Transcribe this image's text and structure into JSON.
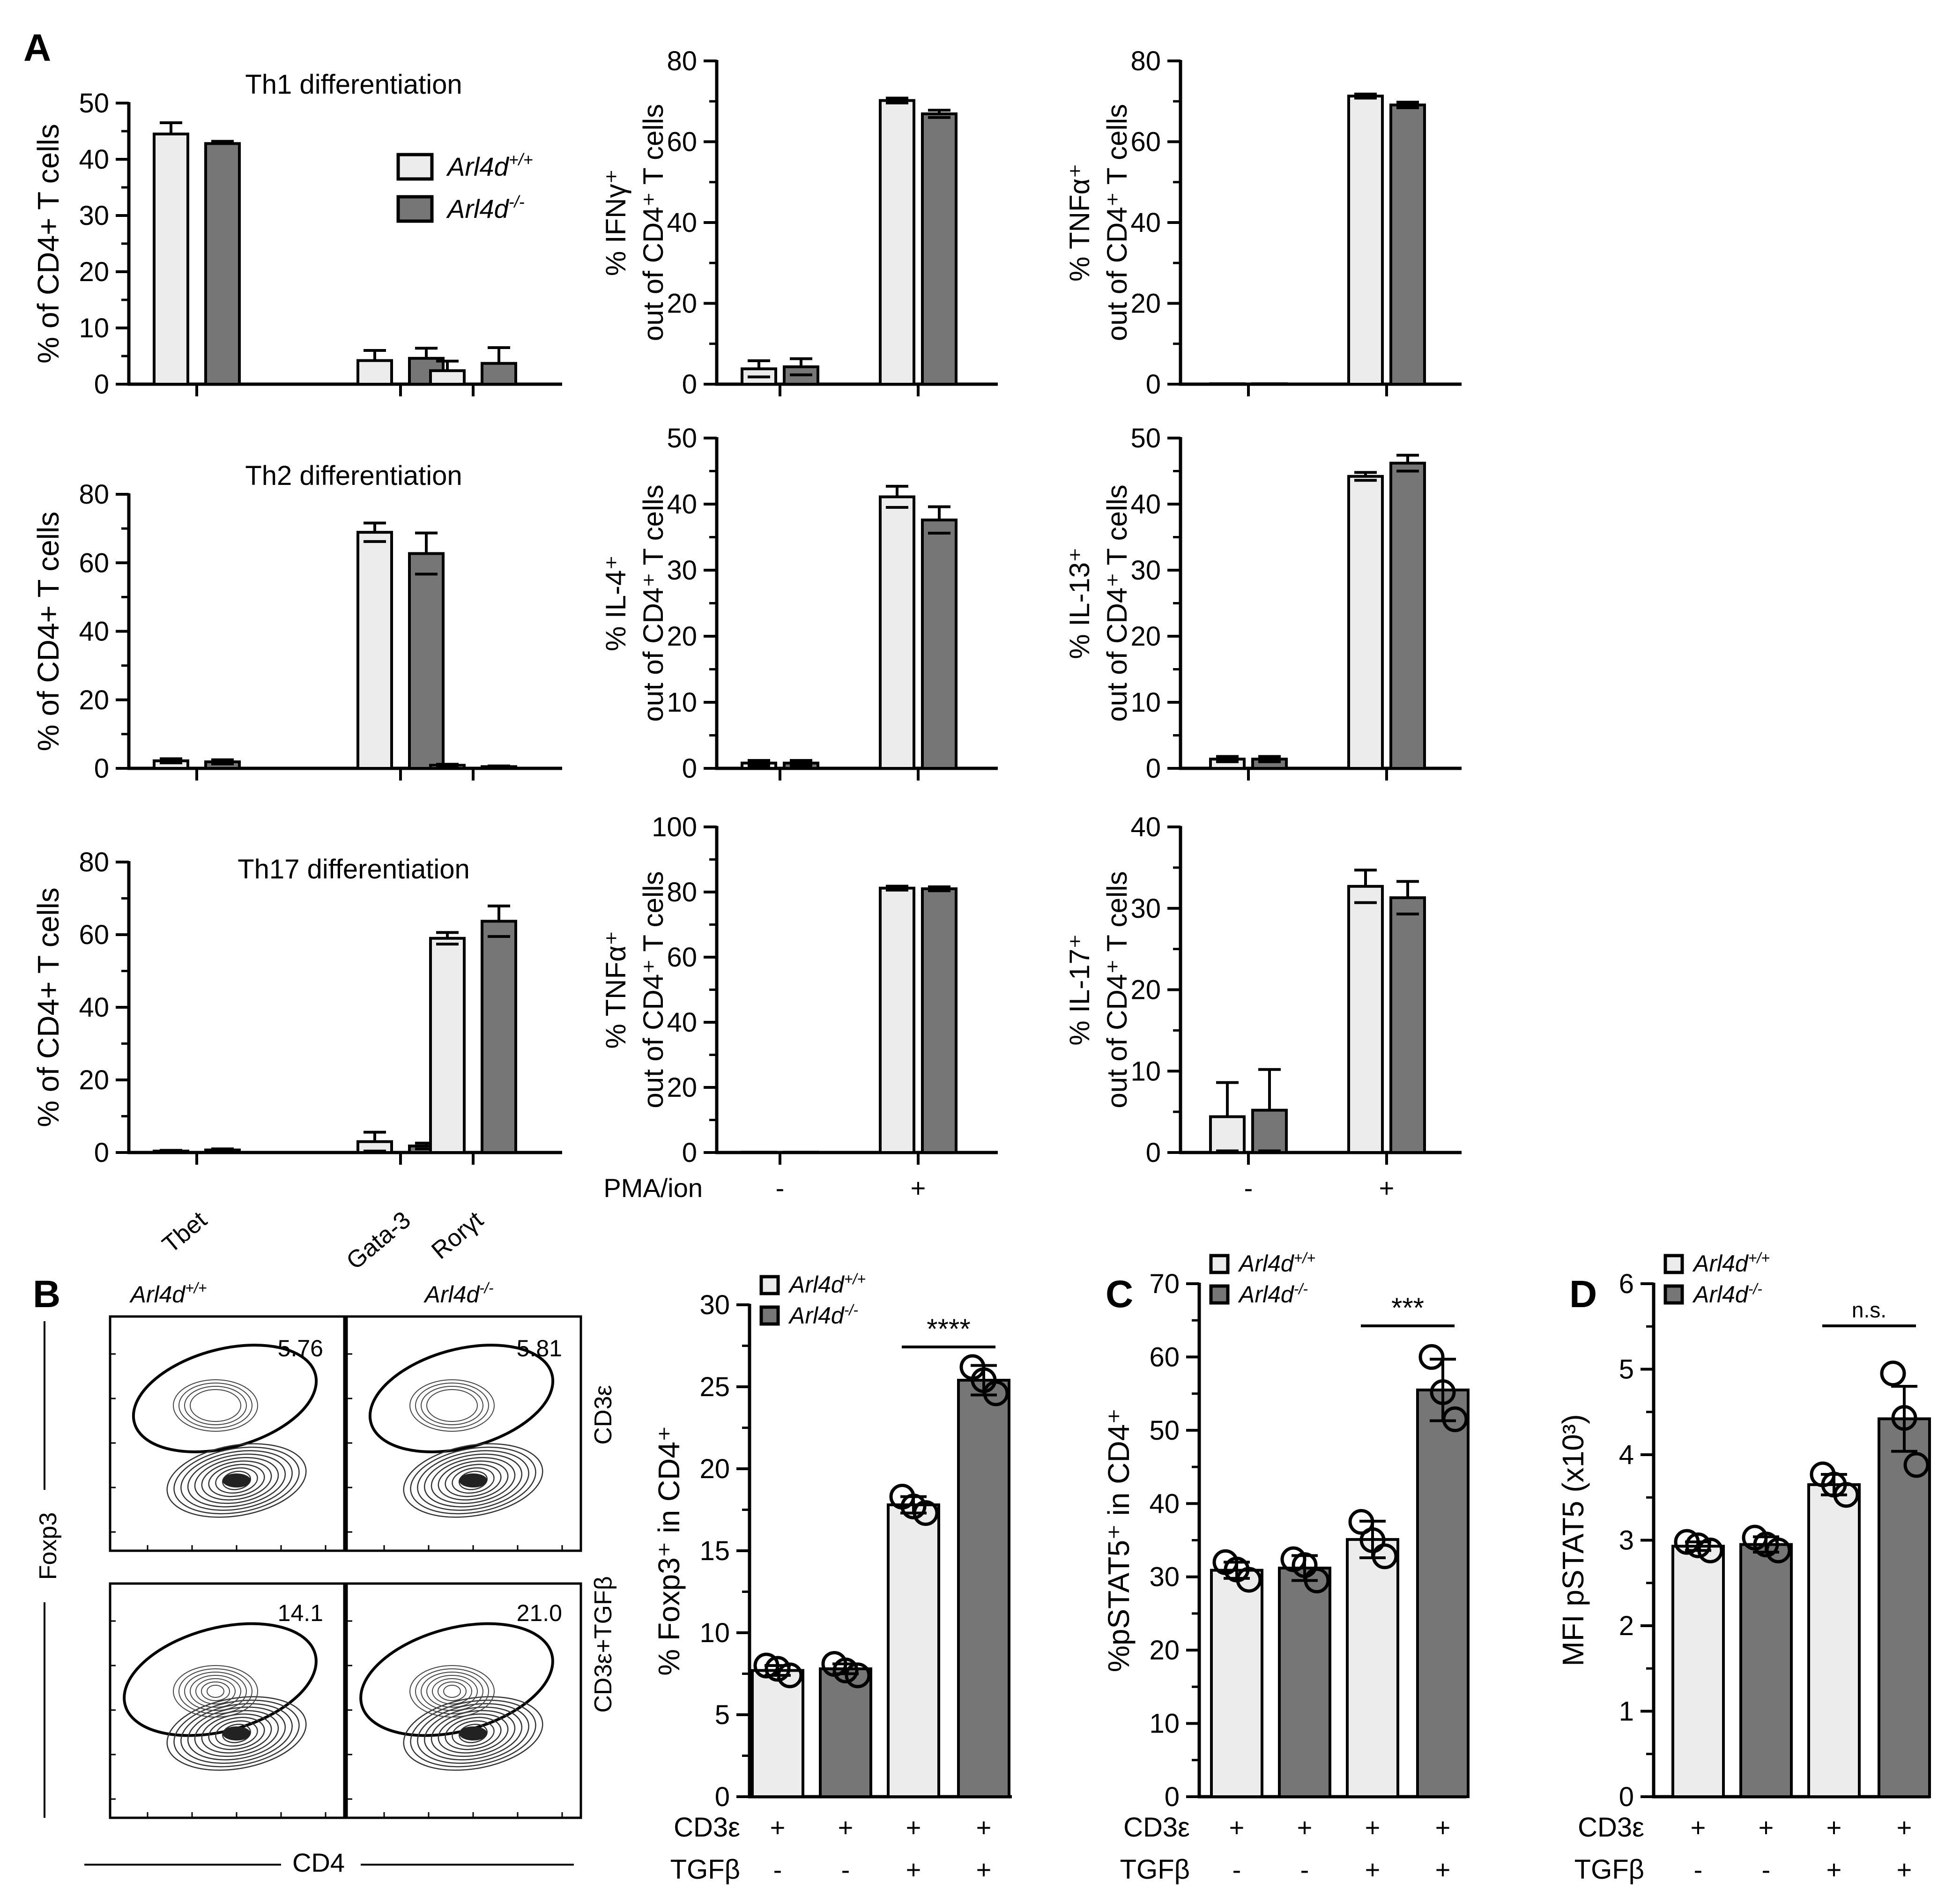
{
  "colors": {
    "wt": "#ececec",
    "ko": "#767676",
    "stroke": "#000000"
  },
  "legend_a": {
    "wt_gene": "Arl4d",
    "wt_sup": "+/+",
    "ko_gene": "Arl4d",
    "ko_sup": "-/-"
  },
  "panel_labels": {
    "A": "A",
    "B": "B",
    "C": "C",
    "D": "D"
  },
  "flow": {
    "col_wt": "Arl4d",
    "col_wt_sup": "+/+",
    "col_ko": "Arl4d",
    "col_ko_sup": "-/-",
    "row_top": "CD3ε",
    "row_bottom": "CD3ε+TGFβ",
    "y_axis": "Foxp3",
    "x_axis": "CD4",
    "values": [
      "5.76",
      "5.81",
      "14.1",
      "21.0"
    ]
  },
  "chart_data": [
    {
      "id": "th1",
      "type": "bar",
      "title": "Th1 differentiation",
      "ylabel": "% of CD4+ T cells",
      "ylim": [
        0,
        50
      ],
      "ticks": [
        0,
        10,
        20,
        30,
        40,
        50
      ],
      "categories": [
        "Tbet",
        "Gata-3",
        "Rorγt"
      ],
      "series": [
        {
          "name": "Arl4d+/+",
          "values": [
            44.5,
            4.2,
            2.4
          ],
          "errors": [
            2.0,
            1.8,
            1.7
          ]
        },
        {
          "name": "Arl4d-/-",
          "values": [
            42.8,
            4.6,
            3.7
          ],
          "errors": [
            0.4,
            1.8,
            2.8
          ]
        }
      ]
    },
    {
      "id": "th1_ifng",
      "type": "bar",
      "ylabel": "% IFNγ⁺ out of CD4⁺ T cells",
      "ylim": [
        0,
        80
      ],
      "ticks": [
        0,
        20,
        40,
        60,
        80
      ],
      "categories": [
        "-",
        "+"
      ],
      "series": [
        {
          "name": "Arl4d+/+",
          "values": [
            3.8,
            70.2
          ],
          "errors": [
            2.0,
            0.6
          ]
        },
        {
          "name": "Arl4d-/-",
          "values": [
            4.3,
            66.9
          ],
          "errors": [
            2.0,
            0.9
          ]
        }
      ]
    },
    {
      "id": "th1_tnfa",
      "type": "bar",
      "ylabel": "% TNFα⁺ out of CD4⁺ T cells",
      "ylim": [
        0,
        80
      ],
      "ticks": [
        0,
        20,
        40,
        60,
        80
      ],
      "categories": [
        "-",
        "+"
      ],
      "series": [
        {
          "name": "Arl4d+/+",
          "values": [
            0.1,
            71.3
          ],
          "errors": [
            0,
            0.5
          ]
        },
        {
          "name": "Arl4d-/-",
          "values": [
            0.1,
            69.1
          ],
          "errors": [
            0,
            0.7
          ]
        }
      ]
    },
    {
      "id": "th2",
      "type": "bar",
      "title": "Th2 differentiation",
      "ylabel": "% of CD4+ T cells",
      "ylim": [
        0,
        80
      ],
      "ticks": [
        0,
        20,
        40,
        60,
        80
      ],
      "categories": [
        "Tbet",
        "Gata-3",
        "Rorγt"
      ],
      "series": [
        {
          "name": "Arl4d+/+",
          "values": [
            2.2,
            68.9,
            0.9
          ],
          "errors": [
            0.6,
            2.7,
            0.3
          ]
        },
        {
          "name": "Arl4d-/-",
          "values": [
            1.9,
            62.7,
            0.5
          ],
          "errors": [
            0.6,
            6.0,
            0.2
          ]
        }
      ]
    },
    {
      "id": "th2_il4",
      "type": "bar",
      "ylabel": "% IL-4⁺ out of CD4⁺ T cells",
      "ylim": [
        0,
        50
      ],
      "ticks": [
        0,
        10,
        20,
        30,
        40,
        50
      ],
      "categories": [
        "-",
        "+"
      ],
      "series": [
        {
          "name": "Arl4d+/+",
          "values": [
            0.8,
            41.1
          ],
          "errors": [
            0.4,
            1.6
          ]
        },
        {
          "name": "Arl4d-/-",
          "values": [
            0.8,
            37.6
          ],
          "errors": [
            0.4,
            2.0
          ]
        }
      ]
    },
    {
      "id": "th2_il13",
      "type": "bar",
      "ylabel": "% IL-13⁺ out of CD4⁺ T cells",
      "ylim": [
        0,
        50
      ],
      "ticks": [
        0,
        10,
        20,
        30,
        40,
        50
      ],
      "categories": [
        "-",
        "+"
      ],
      "series": [
        {
          "name": "Arl4d+/+",
          "values": [
            1.4,
            44.2
          ],
          "errors": [
            0.4,
            0.6
          ]
        },
        {
          "name": "Arl4d-/-",
          "values": [
            1.4,
            46.2
          ],
          "errors": [
            0.4,
            1.2
          ]
        }
      ]
    },
    {
      "id": "th17",
      "type": "bar",
      "title": "Th17 differentiation",
      "ylabel": "% of CD4+ T cells",
      "ylim": [
        0,
        80
      ],
      "ticks": [
        0,
        20,
        40,
        60,
        80
      ],
      "categories": [
        "Tbet",
        "Gata-3",
        "Rorγt"
      ],
      "series": [
        {
          "name": "Arl4d+/+",
          "values": [
            0.4,
            3.0,
            59.0
          ],
          "errors": [
            0.2,
            2.6,
            1.6
          ]
        },
        {
          "name": "Arl4d-/-",
          "values": [
            0.7,
            1.8,
            63.7
          ],
          "errors": [
            0.3,
            0.8,
            4.2
          ]
        }
      ]
    },
    {
      "id": "th17_tnfa",
      "type": "bar",
      "ylabel": "% TNFα⁺ out of CD4⁺ T cells",
      "ylim": [
        0,
        100
      ],
      "ticks": [
        0,
        20,
        40,
        60,
        80,
        100
      ],
      "categories": [
        "-",
        "+"
      ],
      "row_label": "PMA/ion",
      "series": [
        {
          "name": "Arl4d+/+",
          "values": [
            0.1,
            81.2
          ],
          "errors": [
            0,
            0.6
          ]
        },
        {
          "name": "Arl4d-/-",
          "values": [
            0.1,
            81.0
          ],
          "errors": [
            0,
            0.6
          ]
        }
      ]
    },
    {
      "id": "th17_il17",
      "type": "bar",
      "ylabel": "% IL-17⁺ out of CD4⁺ T cells",
      "ylim": [
        0,
        40
      ],
      "ticks": [
        0,
        10,
        20,
        30,
        40
      ],
      "categories": [
        "-",
        "+"
      ],
      "series": [
        {
          "name": "Arl4d+/+",
          "values": [
            4.4,
            32.7
          ],
          "errors": [
            4.2,
            2.0
          ]
        },
        {
          "name": "Arl4d-/-",
          "values": [
            5.2,
            31.3
          ],
          "errors": [
            5.0,
            2.0
          ]
        }
      ]
    },
    {
      "id": "foxp3",
      "type": "bar",
      "ylabel": "% Foxp3⁺ in CD4⁺",
      "ylim": [
        0,
        30
      ],
      "ticks": [
        0,
        5,
        10,
        15,
        20,
        25,
        30
      ],
      "row_labels": [
        "CD3ε",
        "TGFβ"
      ],
      "cd3e": [
        "+",
        "+",
        "+",
        "+"
      ],
      "tgfb": [
        "-",
        "-",
        "+",
        "+"
      ],
      "bars": [
        {
          "name": "Arl4d+/+",
          "value": 7.7,
          "error": 0.3,
          "points": [
            8.0,
            7.4,
            7.8
          ]
        },
        {
          "name": "Arl4d-/-",
          "value": 7.8,
          "error": 0.3,
          "points": [
            8.1,
            7.4,
            7.7
          ]
        },
        {
          "name": "Arl4d+/+",
          "value": 17.8,
          "error": 0.5,
          "points": [
            18.3,
            17.3,
            17.7
          ]
        },
        {
          "name": "Arl4d-/-",
          "value": 25.4,
          "error": 0.9,
          "points": [
            26.2,
            24.6,
            25.4
          ]
        }
      ],
      "significance": {
        "label": "****",
        "between": [
          2,
          3
        ]
      }
    },
    {
      "id": "pstat5_pct",
      "type": "bar",
      "ylabel": "%pSTAT5⁺ in CD4⁺",
      "ylim": [
        0,
        70
      ],
      "ticks": [
        0,
        10,
        20,
        30,
        40,
        50,
        60,
        70
      ],
      "row_labels": [
        "CD3ε",
        "TGFβ"
      ],
      "cd3e": [
        "+",
        "+",
        "+",
        "+"
      ],
      "tgfb": [
        "-",
        "-",
        "+",
        "+"
      ],
      "bars": [
        {
          "name": "Arl4d+/+",
          "value": 30.9,
          "error": 1.1,
          "points": [
            32.0,
            29.6,
            31.0
          ]
        },
        {
          "name": "Arl4d-/-",
          "value": 31.2,
          "error": 1.7,
          "points": [
            32.4,
            29.5,
            31.6
          ]
        },
        {
          "name": "Arl4d+/+",
          "value": 35.1,
          "error": 2.5,
          "points": [
            37.5,
            32.8,
            35.0
          ]
        },
        {
          "name": "Arl4d-/-",
          "value": 55.5,
          "error": 4.2,
          "points": [
            60.0,
            51.5,
            55.2
          ]
        }
      ],
      "significance": {
        "label": "***",
        "between": [
          2,
          3
        ]
      }
    },
    {
      "id": "pstat5_mfi",
      "type": "bar",
      "ylabel": "MFI pSTAT5 (x10³)",
      "ylim": [
        0,
        6
      ],
      "ticks": [
        0,
        1,
        2,
        3,
        4,
        5,
        6
      ],
      "row_labels": [
        "CD3ε",
        "TGFβ"
      ],
      "cd3e": [
        "+",
        "+",
        "+",
        "+"
      ],
      "tgfb": [
        "-",
        "-",
        "+",
        "+"
      ],
      "bars": [
        {
          "name": "Arl4d+/+",
          "value": 2.93,
          "error": 0.05,
          "points": [
            2.98,
            2.88,
            2.94
          ]
        },
        {
          "name": "Arl4d-/-",
          "value": 2.95,
          "error": 0.09,
          "points": [
            3.03,
            2.88,
            2.95
          ]
        },
        {
          "name": "Arl4d+/+",
          "value": 3.65,
          "error": 0.12,
          "points": [
            3.77,
            3.53,
            3.65
          ]
        },
        {
          "name": "Arl4d-/-",
          "value": 4.42,
          "error": 0.38,
          "points": [
            4.95,
            3.88,
            4.43
          ]
        }
      ],
      "significance": {
        "label": "n.s.",
        "between": [
          2,
          3
        ]
      }
    }
  ]
}
